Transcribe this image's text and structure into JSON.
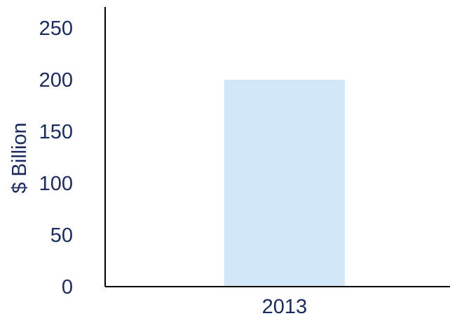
{
  "colors": {
    "bar": "#d2e8f8",
    "text": "#1b2a5e",
    "axis": "#000000"
  },
  "chart_data": {
    "type": "bar",
    "categories": [
      "2013"
    ],
    "values": [
      200
    ],
    "title": "",
    "xlabel": "",
    "ylabel": "$ Billion",
    "ylim": [
      0,
      250
    ],
    "yticks": [
      0,
      50,
      100,
      150,
      200,
      250
    ],
    "grid": false,
    "legend": "none"
  }
}
